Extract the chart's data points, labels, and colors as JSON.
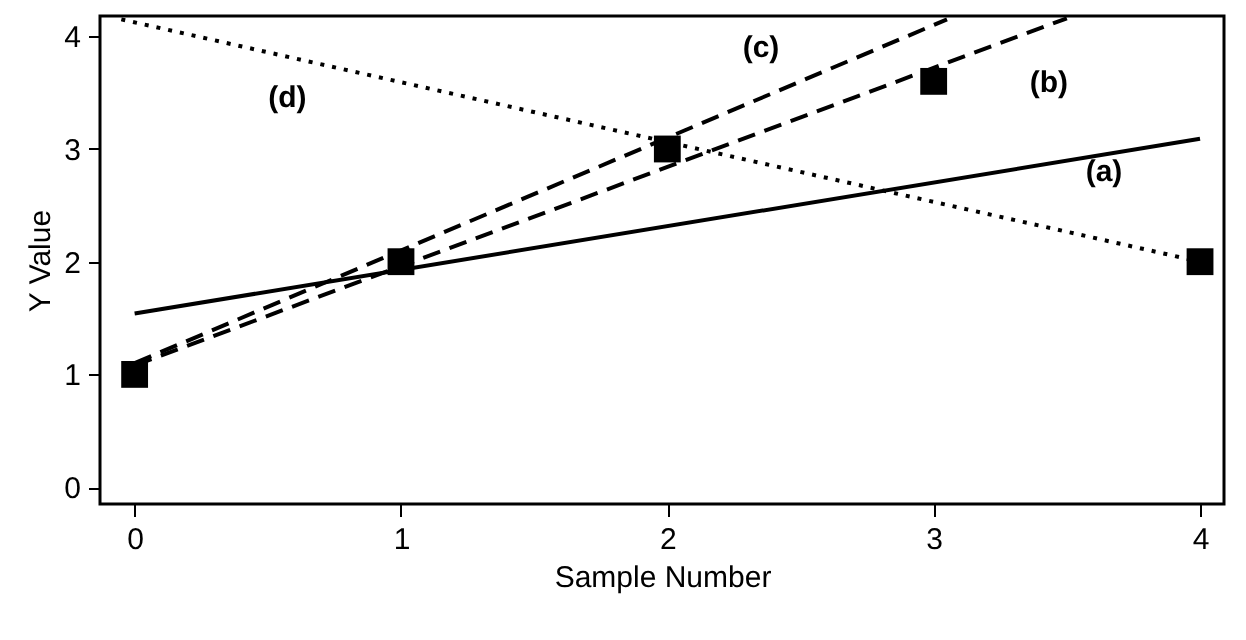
{
  "chart_data": {
    "type": "line",
    "xlabel": "Sample Number",
    "ylabel": "Y Value",
    "xlim": [
      -0.13,
      4.09
    ],
    "ylim": [
      -0.15,
      4.18
    ],
    "xticks": [
      0,
      1,
      2,
      3,
      4
    ],
    "yticks": [
      0,
      1,
      2,
      3,
      4
    ],
    "grid": false,
    "series": [
      {
        "color": "#000000",
        "line_style": "solid",
        "marker": "none",
        "x": [
          0,
          4
        ],
        "values": [
          1.54,
          3.09
        ]
      },
      {
        "color": "#000000",
        "line_style": "dashed",
        "marker": "none",
        "x": [
          0,
          3.5
        ],
        "values": [
          1.08,
          4.16
        ]
      },
      {
        "color": "#000000",
        "line_style": "dashed",
        "marker": "none",
        "x": [
          0,
          3.05
        ],
        "values": [
          1.1,
          4.15
        ]
      },
      {
        "color": "#000000",
        "line_style": "dotted",
        "marker": "none",
        "x": [
          -0.05,
          4
        ],
        "values": [
          4.15,
          2.0
        ]
      },
      {
        "type": "scatter",
        "color": "#000000",
        "marker": "square",
        "x": [
          0,
          1,
          2,
          3,
          4
        ],
        "values": [
          1.0,
          2.0,
          3.0,
          3.6,
          2.0
        ]
      }
    ],
    "annotations": [
      "(a)",
      "(b)",
      "(c)",
      "(d)"
    ]
  }
}
